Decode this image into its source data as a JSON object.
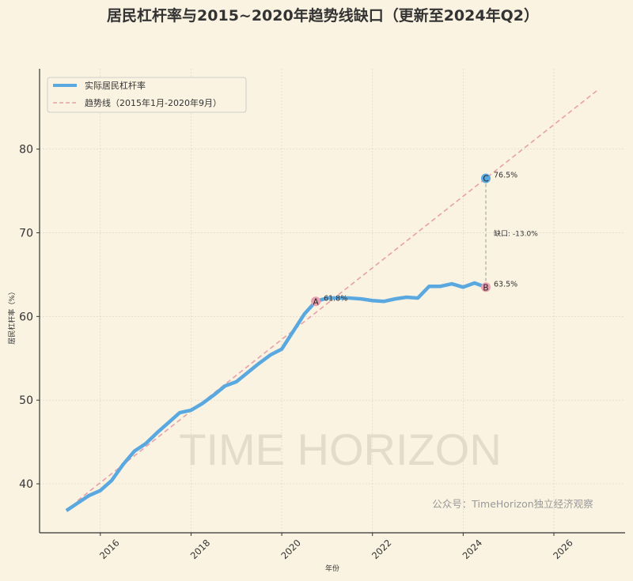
{
  "chart_data": {
    "type": "line",
    "title": "居民杠杆率与2015~2020年趋势线缺口（更新至2024年Q2）",
    "xlabel": "年份",
    "ylabel": "居民杠杆率（%）",
    "xlim": [
      2014.66,
      2027.57
    ],
    "ylim": [
      34.15,
      89.6
    ],
    "xticks": [
      2016,
      2018,
      2020,
      2022,
      2024,
      2026
    ],
    "yticks": [
      40,
      50,
      60,
      70,
      80
    ],
    "grid": true,
    "legend_position": "top-left",
    "watermark": "TIME HORIZON",
    "footnote": "公众号：TimeHorizon独立经济观察",
    "series": [
      {
        "name": "实际居民杠杆率",
        "color": "#5aa8e0",
        "style": "solid",
        "x": [
          2015.25,
          2015.5,
          2015.75,
          2016.0,
          2016.25,
          2016.5,
          2016.75,
          2017.0,
          2017.25,
          2017.5,
          2017.75,
          2018.0,
          2018.25,
          2018.5,
          2018.75,
          2019.0,
          2019.25,
          2019.5,
          2019.75,
          2020.0,
          2020.25,
          2020.5,
          2020.75,
          2021.0,
          2021.25,
          2021.5,
          2021.75,
          2022.0,
          2022.25,
          2022.5,
          2022.75,
          2023.0,
          2023.25,
          2023.5,
          2023.75,
          2024.0,
          2024.25,
          2024.5
        ],
        "y": [
          36.8,
          37.7,
          38.6,
          39.2,
          40.4,
          42.3,
          43.9,
          44.8,
          46.1,
          47.3,
          48.5,
          48.8,
          49.6,
          50.6,
          51.7,
          52.2,
          53.3,
          54.4,
          55.4,
          56.1,
          58.2,
          60.3,
          61.8,
          62.2,
          62.2,
          62.2,
          62.1,
          61.9,
          61.8,
          62.1,
          62.3,
          62.2,
          63.6,
          63.6,
          63.9,
          63.5,
          64.0,
          63.5
        ]
      },
      {
        "name": "趋势线（2015年1月-2020年9月）",
        "color": "#e8a0a8",
        "style": "dashed",
        "x": [
          2015.5,
          2027.0
        ],
        "y": [
          38.0,
          87.2
        ]
      }
    ],
    "annotations": [
      {
        "label": "A",
        "x": 2020.75,
        "y": 61.8,
        "text": "61.8%",
        "color": "#e8a0b0"
      },
      {
        "label": "B",
        "x": 2024.5,
        "y": 63.5,
        "text": "63.5%",
        "color": "#e8a0b0"
      },
      {
        "label": "C",
        "x": 2024.5,
        "y": 76.5,
        "text": "76.5%",
        "color": "#5aa8e0"
      },
      {
        "gap_text": "缺口: -13.0%",
        "x": 2024.5,
        "y_from": 63.5,
        "y_to": 76.5
      }
    ]
  }
}
